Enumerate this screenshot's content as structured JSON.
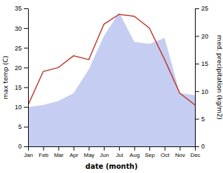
{
  "chart_data": {
    "type": "line",
    "x_label": "date (month)",
    "y_label": "max temp (C)",
    "y2_label": "med. precipitation (kg/m2)",
    "categories": [
      "Jan",
      "Feb",
      "Mar",
      "Apr",
      "May",
      "Jun",
      "Jul",
      "Aug",
      "Sep",
      "Oct",
      "Nov",
      "Dec"
    ],
    "series": [
      {
        "type": "area",
        "color": "#c5cdf2",
        "values": [
          10.0,
          10.5,
          11.5,
          13.5,
          19.5,
          28.0,
          34.0,
          26.5,
          26.0,
          27.5,
          13.5,
          13.0
        ]
      },
      {
        "type": "line",
        "color": "#c0392b",
        "values": [
          10.5,
          19.0,
          20.0,
          23.0,
          22.0,
          31.0,
          33.5,
          33.0,
          30.0,
          22.0,
          13.5,
          10.5
        ]
      }
    ],
    "ylim": [
      0,
      35
    ],
    "yticks": [
      0,
      5,
      10,
      15,
      20,
      25,
      30,
      35
    ],
    "y2lim": [
      0,
      25
    ],
    "y2ticks": [
      0,
      5,
      10,
      15,
      20,
      25
    ],
    "grid": false
  }
}
